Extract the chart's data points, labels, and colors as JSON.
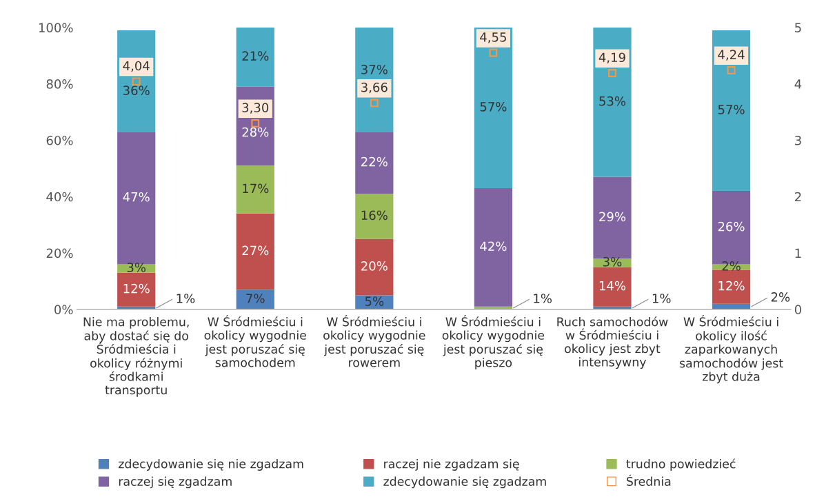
{
  "chart_data": {
    "type": "bar",
    "stacked": true,
    "categories": [
      "Nie ma problemu,\naby dostać się do\nŚródmieścia i\nokolicy różnymi\nśrodkami\ntransportu",
      "W Śródmieściu i\nokolicy wygodnie\njest poruszać się\nsamochodem",
      "W Śródmieściu i\nokolicy wygodnie\njest poruszać się\nrowerem",
      "W Śródmieściu i\nokolicy wygodnie\njest poruszać się\npieszo",
      "Ruch samochodów\nw Śródmieściu i\nokolicy jest zbyt\nintensywny",
      "W Śródmieściu i\nokolicy ilość\nzaparkowanych\nsamochodów jest\nzbyt duża"
    ],
    "series": [
      {
        "name": "zdecydowanie się nie zgadzam",
        "color": "#4f81bd",
        "values": [
          1,
          7,
          5,
          0,
          1,
          2
        ],
        "value_labels": [
          "1%",
          "7%",
          "5%",
          null,
          "1%",
          "2%"
        ]
      },
      {
        "name": "raczej nie zgadzam się",
        "color": "#c0504d",
        "values": [
          12,
          27,
          20,
          0,
          14,
          12
        ],
        "value_labels": [
          "12%",
          "27%",
          "20%",
          null,
          "14%",
          "12%"
        ]
      },
      {
        "name": "trudno powiedzieć",
        "color": "#9bbb59",
        "values": [
          3,
          17,
          16,
          1,
          3,
          2
        ],
        "value_labels": [
          "3%",
          "17%",
          "16%",
          "1%",
          "3%",
          "2%"
        ]
      },
      {
        "name": "raczej się zgadzam",
        "color": "#8064a2",
        "values": [
          47,
          28,
          22,
          42,
          29,
          26
        ],
        "value_labels": [
          "47%",
          "28%",
          "22%",
          "42%",
          "29%",
          "26%"
        ]
      },
      {
        "name": "zdecydowanie się zgadzam",
        "color": "#4bacc6",
        "values": [
          36,
          21,
          37,
          57,
          53,
          57
        ],
        "value_labels": [
          "36%",
          "21%",
          "37%",
          "57%",
          "53%",
          "57%"
        ]
      },
      {
        "name": "Średnia",
        "type": "scatter",
        "axis": "y2",
        "marker": "square",
        "color": "#f79646",
        "values": [
          4.04,
          3.3,
          3.66,
          4.55,
          4.19,
          4.24
        ],
        "value_labels": [
          "4,04",
          "3,30",
          "3,66",
          "4,55",
          "4,19",
          "4,24"
        ]
      }
    ],
    "ylim": [
      0,
      100
    ],
    "yticks": [
      {
        "value": 0,
        "label": "0%"
      },
      {
        "value": 20,
        "label": "20%"
      },
      {
        "value": 40,
        "label": "40%"
      },
      {
        "value": 60,
        "label": "60%"
      },
      {
        "value": 80,
        "label": "80%"
      },
      {
        "value": 100,
        "label": "100%"
      }
    ],
    "y2lim": [
      0,
      5
    ],
    "y2ticks": [
      0,
      1,
      2,
      3,
      4,
      5
    ],
    "grid": false,
    "legend": "bottom"
  }
}
